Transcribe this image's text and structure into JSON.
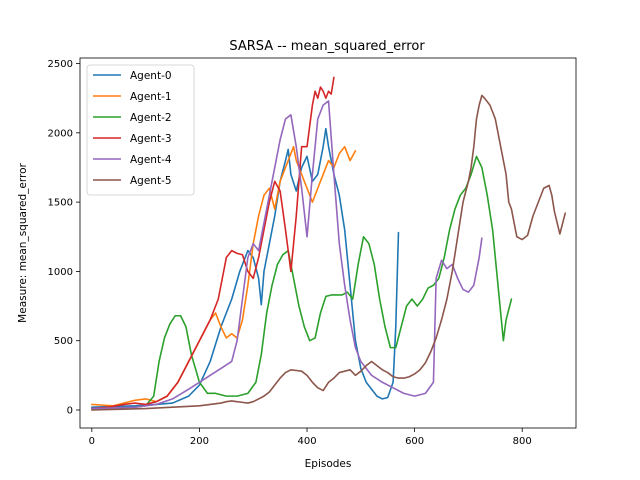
{
  "chart_data": {
    "type": "line",
    "title": "SARSA -- mean_squared_error",
    "xlabel": "Episodes",
    "ylabel": "Measure: mean_squared_error",
    "xlim": [
      -22,
      900
    ],
    "ylim": [
      -130,
      2540
    ],
    "xticks": [
      0,
      200,
      400,
      600,
      800
    ],
    "yticks": [
      0,
      500,
      1000,
      1500,
      2000,
      2500
    ],
    "grid": false,
    "legend_position": "top-left",
    "series": [
      {
        "name": "Agent-0",
        "color": "#1f77b4",
        "x": [
          0,
          40,
          80,
          120,
          150,
          180,
          200,
          220,
          240,
          260,
          275,
          290,
          300,
          310,
          315,
          320,
          330,
          340,
          350,
          360,
          365,
          370,
          380,
          390,
          400,
          410,
          420,
          430,
          435,
          440,
          450,
          460,
          470,
          480,
          490,
          500,
          510,
          520,
          530,
          540,
          550,
          560,
          565,
          570
        ],
        "y": [
          20,
          25,
          30,
          40,
          50,
          100,
          180,
          350,
          600,
          800,
          1000,
          1150,
          1100,
          950,
          760,
          1000,
          1200,
          1400,
          1650,
          1800,
          1880,
          1700,
          1580,
          1750,
          1830,
          1650,
          1700,
          1900,
          2030,
          1900,
          1700,
          1550,
          1300,
          900,
          500,
          300,
          200,
          150,
          100,
          80,
          90,
          200,
          600,
          1280
        ]
      },
      {
        "name": "Agent-1",
        "color": "#ff7f0e",
        "x": [
          0,
          20,
          40,
          60,
          80,
          100,
          120,
          140,
          160,
          180,
          200,
          220,
          230,
          240,
          250,
          260,
          270,
          280,
          290,
          300,
          310,
          320,
          330,
          340,
          350,
          360,
          370,
          375,
          380,
          390,
          400,
          410,
          420,
          430,
          440,
          450,
          460,
          470,
          480,
          490
        ],
        "y": [
          40,
          35,
          30,
          50,
          70,
          80,
          60,
          100,
          200,
          350,
          500,
          650,
          700,
          600,
          520,
          550,
          520,
          650,
          900,
          1200,
          1400,
          1550,
          1600,
          1450,
          1650,
          1750,
          1850,
          1900,
          1800,
          1700,
          1600,
          1500,
          1600,
          1700,
          1800,
          1750,
          1850,
          1900,
          1800,
          1870
        ]
      },
      {
        "name": "Agent-2",
        "color": "#2ca02c",
        "x": [
          0,
          40,
          80,
          100,
          115,
          125,
          135,
          145,
          155,
          165,
          175,
          185,
          200,
          215,
          230,
          250,
          270,
          290,
          305,
          315,
          325,
          335,
          345,
          355,
          365,
          375,
          385,
          395,
          405,
          415,
          425,
          435,
          445,
          455,
          465,
          475,
          485,
          495,
          505,
          515,
          525,
          535,
          545,
          555,
          565,
          575,
          585,
          595,
          605,
          615,
          625,
          635,
          645,
          655,
          665,
          675,
          685,
          695,
          705,
          715,
          725,
          735,
          745,
          755,
          765,
          770,
          780
        ],
        "y": [
          10,
          15,
          20,
          30,
          100,
          350,
          520,
          620,
          680,
          680,
          600,
          400,
          200,
          120,
          120,
          100,
          100,
          120,
          200,
          400,
          700,
          900,
          1050,
          1120,
          1150,
          950,
          750,
          600,
          500,
          520,
          700,
          820,
          830,
          830,
          830,
          850,
          800,
          1050,
          1250,
          1200,
          1050,
          800,
          600,
          450,
          450,
          600,
          750,
          800,
          750,
          800,
          880,
          900,
          950,
          1100,
          1300,
          1450,
          1550,
          1600,
          1700,
          1830,
          1750,
          1550,
          1300,
          900,
          500,
          650,
          800
        ]
      },
      {
        "name": "Agent-3",
        "color": "#d62728",
        "x": [
          0,
          30,
          60,
          80,
          100,
          120,
          140,
          160,
          180,
          200,
          220,
          235,
          250,
          260,
          270,
          280,
          290,
          300,
          310,
          320,
          330,
          340,
          350,
          360,
          370,
          380,
          385,
          390,
          400,
          410,
          415,
          420,
          425,
          430,
          435,
          440,
          445,
          450
        ],
        "y": [
          10,
          20,
          40,
          50,
          40,
          60,
          100,
          200,
          350,
          500,
          650,
          800,
          1100,
          1150,
          1130,
          1120,
          1000,
          950,
          1100,
          1300,
          1500,
          1650,
          1580,
          1300,
          1000,
          1400,
          1650,
          1900,
          1900,
          2200,
          2300,
          2250,
          2330,
          2300,
          2250,
          2300,
          2280,
          2400
        ]
      },
      {
        "name": "Agent-4",
        "color": "#9467bd",
        "x": [
          0,
          40,
          80,
          100,
          120,
          150,
          180,
          200,
          220,
          240,
          260,
          270,
          280,
          290,
          300,
          310,
          320,
          330,
          340,
          350,
          360,
          370,
          380,
          390,
          400,
          410,
          420,
          430,
          440,
          450,
          460,
          470,
          480,
          490,
          500,
          510,
          520,
          540,
          560,
          580,
          600,
          620,
          635,
          640,
          650,
          660,
          670,
          680,
          690,
          700,
          710,
          720,
          725
        ],
        "y": [
          10,
          15,
          20,
          30,
          40,
          80,
          150,
          200,
          250,
          300,
          350,
          500,
          800,
          1100,
          1200,
          1150,
          1350,
          1550,
          1750,
          1950,
          2100,
          2130,
          1900,
          1600,
          1250,
          1700,
          2100,
          2200,
          2230,
          1700,
          1200,
          900,
          650,
          450,
          350,
          300,
          250,
          200,
          160,
          120,
          100,
          120,
          200,
          950,
          1080,
          1020,
          1050,
          950,
          870,
          850,
          900,
          1100,
          1240
        ]
      },
      {
        "name": "Agent-5",
        "color": "#8c564b",
        "x": [
          0,
          100,
          200,
          220,
          240,
          250,
          260,
          270,
          280,
          290,
          300,
          310,
          320,
          330,
          340,
          350,
          360,
          370,
          380,
          390,
          400,
          410,
          420,
          430,
          440,
          450,
          460,
          470,
          480,
          490,
          500,
          510,
          520,
          530,
          540,
          550,
          560,
          570,
          580,
          590,
          600,
          610,
          620,
          630,
          640,
          650,
          660,
          670,
          680,
          690,
          700,
          705,
          710,
          715,
          720,
          725,
          730,
          740,
          750,
          760,
          770,
          775,
          780,
          790,
          800,
          810,
          820,
          830,
          840,
          850,
          855,
          860,
          870,
          880
        ],
        "y": [
          0,
          10,
          30,
          40,
          50,
          60,
          65,
          60,
          55,
          50,
          60,
          80,
          100,
          130,
          180,
          230,
          270,
          290,
          285,
          280,
          250,
          200,
          160,
          140,
          200,
          230,
          270,
          280,
          290,
          250,
          280,
          320,
          350,
          320,
          290,
          270,
          240,
          230,
          230,
          240,
          260,
          290,
          340,
          420,
          520,
          650,
          800,
          1000,
          1250,
          1500,
          1650,
          1750,
          1900,
          2100,
          2200,
          2270,
          2250,
          2200,
          2100,
          1900,
          1700,
          1500,
          1450,
          1250,
          1230,
          1260,
          1400,
          1500,
          1600,
          1620,
          1550,
          1430,
          1270,
          1420
        ]
      }
    ]
  }
}
